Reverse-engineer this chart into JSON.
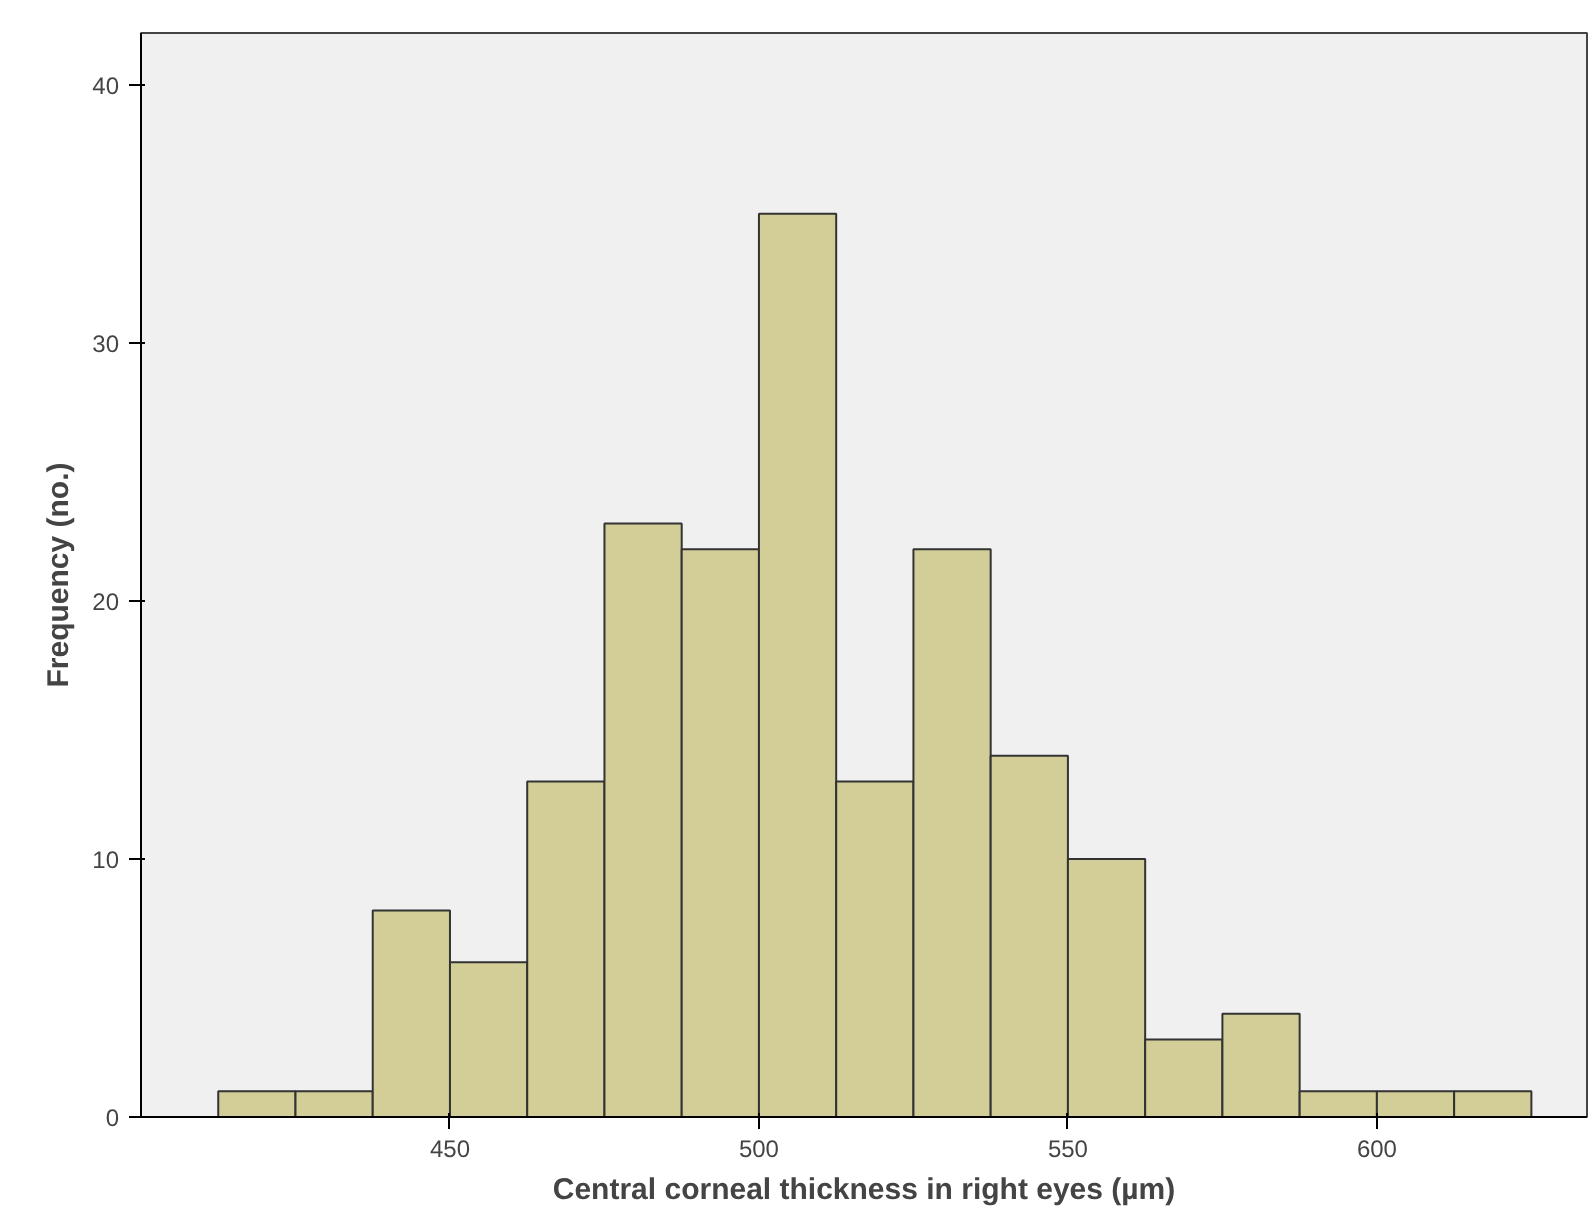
{
  "chart_data": {
    "type": "histogram",
    "xlabel": "Central corneal thickness in right eyes (µm)",
    "ylabel": "Frequency (no.)",
    "bins": [
      412.5,
      425,
      437.5,
      450,
      462.5,
      475,
      487.5,
      500,
      512.5,
      525,
      537.5,
      550,
      562.5,
      575,
      587.5,
      600,
      612.5,
      625
    ],
    "values": [
      1,
      1,
      8,
      6,
      13,
      23,
      22,
      35,
      13,
      22,
      14,
      10,
      3,
      4,
      1,
      1,
      1
    ],
    "color": "#d3ce97",
    "xlim": [
      400,
      634
    ],
    "ylim": [
      0,
      42
    ],
    "xticks": [
      450,
      500,
      550,
      600
    ],
    "yticks": [
      0,
      10,
      20,
      30,
      40
    ],
    "grid": false
  }
}
